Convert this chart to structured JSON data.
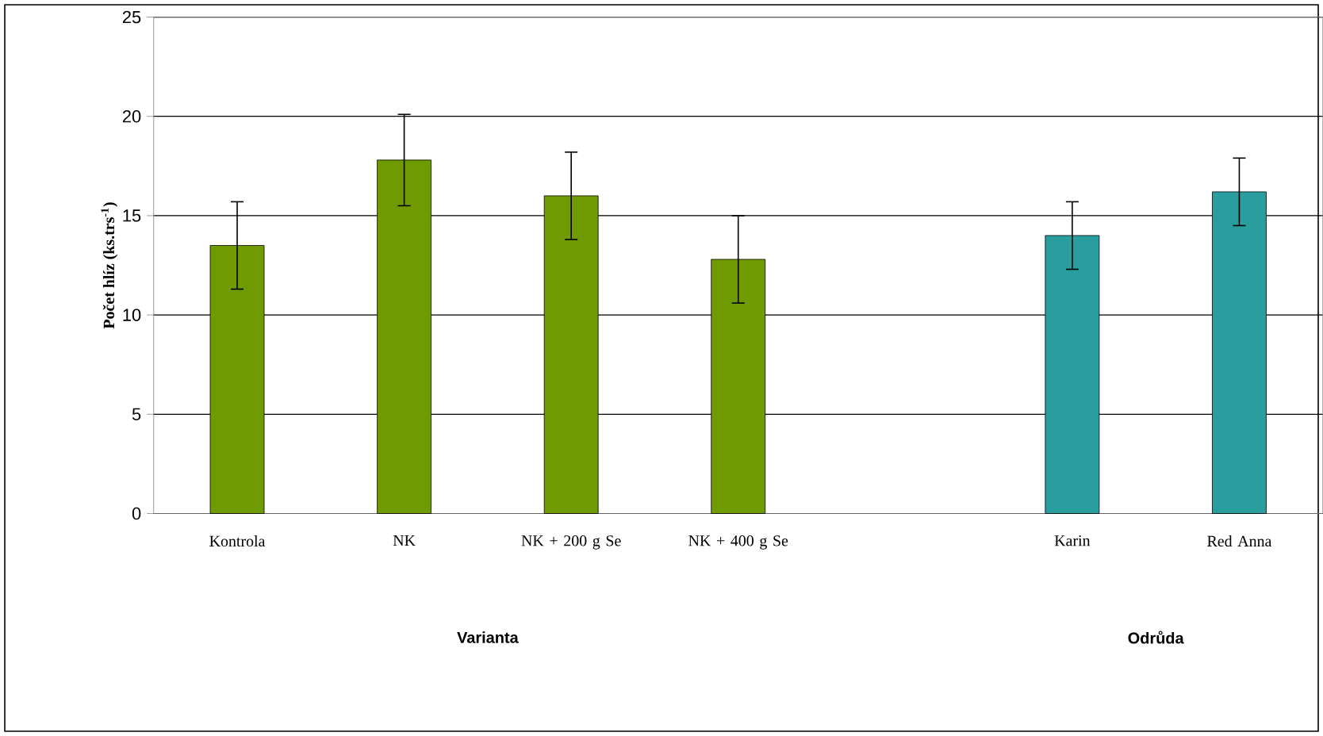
{
  "chart_data": {
    "type": "bar",
    "ylabel": "Počet hlíz (ks.trs$^{-1}$)",
    "categories": [
      "Kontrola",
      "NK",
      "NK + 200 g Se",
      "NK + 400 g Se",
      null,
      "Karin",
      "Red Anna"
    ],
    "values": [
      13.5,
      17.8,
      16.0,
      12.8,
      null,
      14.0,
      16.2
    ],
    "errors": [
      2.2,
      2.3,
      2.2,
      2.2,
      null,
      1.7,
      1.7
    ],
    "colors": [
      "#6f9a00",
      "#6f9a00",
      "#6f9a00",
      "#6f9a00",
      "#6f9a00",
      "#2a9e9e",
      "#2a9e9e"
    ],
    "ylim": [
      0,
      25
    ],
    "yticks": [
      0,
      5,
      10,
      15,
      20,
      25
    ],
    "grid": "y",
    "annotations": [
      "Varianta",
      "Odrůda"
    ]
  }
}
